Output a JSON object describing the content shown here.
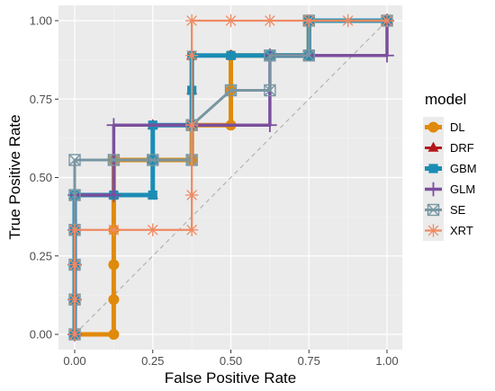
{
  "chart_data": {
    "type": "line",
    "title": "",
    "xlabel": "False Positive Rate",
    "ylabel": "True Positive Rate",
    "xlim": [
      0,
      1
    ],
    "ylim": [
      0,
      1
    ],
    "x_ticks": [
      "0.00",
      "0.25",
      "0.50",
      "0.75",
      "1.00"
    ],
    "y_ticks": [
      "0.00",
      "0.25",
      "0.50",
      "0.75",
      "1.00"
    ],
    "grid": true,
    "diagonal_reference": true,
    "legend": {
      "title": "model",
      "position": "right"
    },
    "series": [
      {
        "name": "DL",
        "color": "#e08a0b",
        "marker": "circle",
        "points": [
          [
            0,
            0
          ],
          [
            0.125,
            0
          ],
          [
            0.125,
            0.111
          ],
          [
            0.125,
            0.222
          ],
          [
            0.125,
            0.333
          ],
          [
            0.125,
            0.444
          ],
          [
            0.125,
            0.556
          ],
          [
            0.25,
            0.556
          ],
          [
            0.375,
            0.556
          ],
          [
            0.375,
            0.667
          ],
          [
            0.5,
            0.667
          ],
          [
            0.5,
            0.778
          ],
          [
            0.5,
            0.889
          ],
          [
            0.75,
            0.889
          ],
          [
            0.75,
            1.0
          ],
          [
            1.0,
            1.0
          ]
        ]
      },
      {
        "name": "DRF",
        "color": "#b2181b",
        "marker": "triangle",
        "points": [
          [
            0,
            0
          ],
          [
            0,
            0.111
          ],
          [
            0,
            0.222
          ],
          [
            0,
            0.333
          ],
          [
            0,
            0.444
          ],
          [
            0.125,
            0.444
          ],
          [
            0.25,
            0.444
          ],
          [
            0.25,
            0.556
          ],
          [
            0.25,
            0.667
          ],
          [
            0.375,
            0.667
          ],
          [
            0.375,
            0.778
          ],
          [
            0.375,
            0.889
          ],
          [
            0.5,
            0.889
          ],
          [
            0.625,
            0.889
          ],
          [
            0.75,
            0.889
          ],
          [
            0.75,
            1.0
          ],
          [
            1.0,
            1.0
          ]
        ]
      },
      {
        "name": "GBM",
        "color": "#1b8db4",
        "marker": "square",
        "points": [
          [
            0,
            0
          ],
          [
            0,
            0.111
          ],
          [
            0,
            0.222
          ],
          [
            0,
            0.333
          ],
          [
            0,
            0.444
          ],
          [
            0.125,
            0.444
          ],
          [
            0.25,
            0.444
          ],
          [
            0.25,
            0.556
          ],
          [
            0.25,
            0.667
          ],
          [
            0.375,
            0.667
          ],
          [
            0.375,
            0.778
          ],
          [
            0.375,
            0.889
          ],
          [
            0.5,
            0.889
          ],
          [
            0.625,
            0.889
          ],
          [
            0.75,
            0.889
          ],
          [
            0.75,
            1.0
          ],
          [
            1.0,
            1.0
          ]
        ]
      },
      {
        "name": "GLM",
        "color": "#7b4f9d",
        "marker": "plus",
        "points": [
          [
            0,
            0
          ],
          [
            0,
            0.111
          ],
          [
            0,
            0.222
          ],
          [
            0,
            0.333
          ],
          [
            0,
            0.444
          ],
          [
            0.125,
            0.444
          ],
          [
            0.125,
            0.556
          ],
          [
            0.125,
            0.667
          ],
          [
            0.375,
            0.667
          ],
          [
            0.625,
            0.667
          ],
          [
            0.625,
            0.889
          ],
          [
            1.0,
            0.889
          ],
          [
            1.0,
            1.0
          ]
        ]
      },
      {
        "name": "SE",
        "color": "#7896a2",
        "marker": "square-x",
        "points": [
          [
            0,
            0
          ],
          [
            0,
            0.111
          ],
          [
            0,
            0.222
          ],
          [
            0,
            0.333
          ],
          [
            0,
            0.444
          ],
          [
            0,
            0.556
          ],
          [
            0.125,
            0.556
          ],
          [
            0.25,
            0.556
          ],
          [
            0.375,
            0.556
          ],
          [
            0.375,
            0.667
          ],
          [
            0.5,
            0.778
          ],
          [
            0.625,
            0.778
          ],
          [
            0.625,
            0.889
          ],
          [
            0.75,
            0.889
          ],
          [
            0.75,
            1.0
          ],
          [
            1.0,
            1.0
          ]
        ]
      },
      {
        "name": "XRT",
        "color": "#ef8a62",
        "marker": "asterisk",
        "points": [
          [
            0,
            0
          ],
          [
            0,
            0.111
          ],
          [
            0,
            0.222
          ],
          [
            0,
            0.333
          ],
          [
            0.125,
            0.333
          ],
          [
            0.25,
            0.333
          ],
          [
            0.375,
            0.333
          ],
          [
            0.375,
            0.444
          ],
          [
            0.375,
            0.667
          ],
          [
            0.375,
            0.889
          ],
          [
            0.375,
            1.0
          ],
          [
            0.5,
            1.0
          ],
          [
            0.625,
            1.0
          ],
          [
            0.75,
            1.0
          ],
          [
            0.875,
            1.0
          ],
          [
            1.0,
            1.0
          ]
        ]
      }
    ]
  }
}
